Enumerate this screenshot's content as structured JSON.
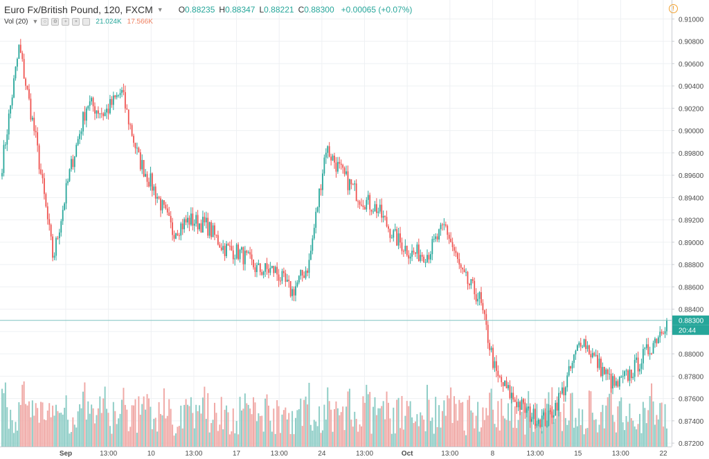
{
  "header": {
    "symbol": "Euro Fx/British Pound, 120, FXCM",
    "open_label": "O",
    "open": "0.88235",
    "high_label": "H",
    "high": "0.88347",
    "low_label": "L",
    "low": "0.88221",
    "close_label": "C",
    "close": "0.88300",
    "change": "+0.00065 (+0.07%)"
  },
  "volume": {
    "label": "Vol (20)",
    "value_a": "21.024K",
    "value_b": "17.566K"
  },
  "price_scale": {
    "ticks": [
      "0.91000",
      "0.90800",
      "0.90600",
      "0.90400",
      "0.90200",
      "0.90000",
      "0.89800",
      "0.89600",
      "0.89400",
      "0.89200",
      "0.89000",
      "0.88800",
      "0.88600",
      "0.88400",
      "0.88200",
      "0.88000",
      "0.87800",
      "0.87600",
      "0.87400",
      "0.87200"
    ],
    "last_price": "0.88300",
    "countdown": "20:44"
  },
  "colors": {
    "up": "#26a69a",
    "down": "#ef5350",
    "up_vol": "#8ecdc6",
    "down_vol": "#f0a9a6",
    "price_line": "#7fc4c0",
    "grid": "#eef0f3"
  },
  "chart_data": {
    "type": "candlestick",
    "symbol": "EUR/GBP",
    "timeframe": "120",
    "ylim": [
      0.8712,
      0.9112
    ],
    "time_labels": [
      "Sep",
      "13:00",
      "10",
      "13:00",
      "17",
      "13:00",
      "24",
      "13:00",
      "Oct",
      "13:00",
      "8",
      "13:00",
      "15",
      "13:00",
      "22"
    ],
    "close_path": [
      [
        "Aug 28",
        0.897
      ],
      [
        "Aug 29",
        0.9075
      ],
      [
        "Aug 30",
        0.899
      ],
      [
        "Aug 31",
        0.8885
      ],
      [
        "Sep 3",
        0.8965
      ],
      [
        "Sep 4",
        0.9025
      ],
      [
        "Sep 5",
        0.9015
      ],
      [
        "Sep 6",
        0.9035
      ],
      [
        "Sep 7",
        0.8975
      ],
      [
        "Sep 10",
        0.8945
      ],
      [
        "Sep 11",
        0.891
      ],
      [
        "Sep 12",
        0.892
      ],
      [
        "Sep 13",
        0.8915
      ],
      [
        "Sep 14",
        0.8895
      ],
      [
        "Sep 17",
        0.889
      ],
      [
        "Sep 18",
        0.8875
      ],
      [
        "Sep 19",
        0.8875
      ],
      [
        "Sep 20",
        0.8855
      ],
      [
        "Sep 21",
        0.888
      ],
      [
        "Sep 24",
        0.8985
      ],
      [
        "Sep 25",
        0.896
      ],
      [
        "Sep 26",
        0.894
      ],
      [
        "Sep 27",
        0.893
      ],
      [
        "Sep 28",
        0.8905
      ],
      [
        "Oct 1",
        0.889
      ],
      [
        "Oct 2",
        0.889
      ],
      [
        "Oct 3",
        0.8915
      ],
      [
        "Oct 4",
        0.887
      ],
      [
        "Oct 5",
        0.885
      ],
      [
        "Oct 8",
        0.878
      ],
      [
        "Oct 9",
        0.876
      ],
      [
        "Oct 10",
        0.8745
      ],
      [
        "Oct 11",
        0.874
      ],
      [
        "Oct 12",
        0.877
      ],
      [
        "Oct 15",
        0.8815
      ],
      [
        "Oct 16",
        0.879
      ],
      [
        "Oct 17",
        0.877
      ],
      [
        "Oct 18",
        0.8785
      ],
      [
        "Oct 19",
        0.8805
      ],
      [
        "Oct 22",
        0.883
      ]
    ],
    "last": 0.883,
    "volume_range": [
      0,
      35000
    ]
  }
}
